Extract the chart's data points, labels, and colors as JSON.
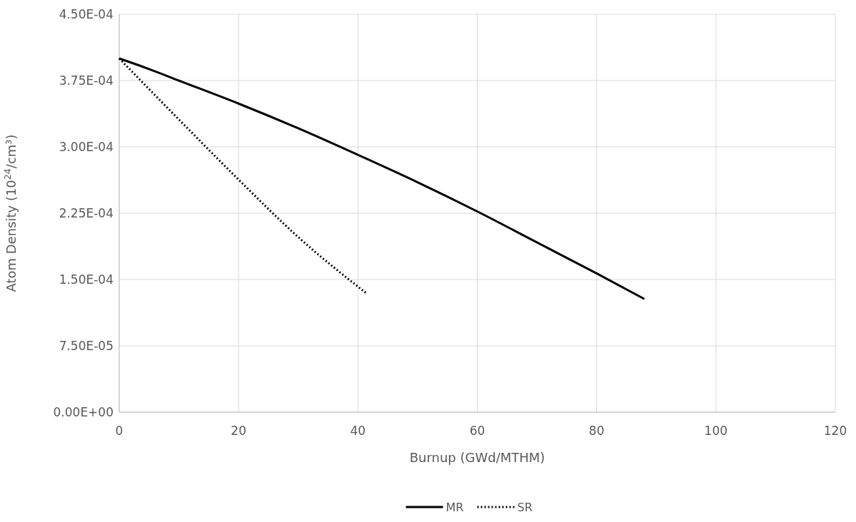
{
  "chart_data": {
    "type": "line",
    "xlabel": "Burnup (GWd/MTHM)",
    "ylabel": "Atom Density (10$^{24}$/cm³)",
    "xlim": [
      0,
      120
    ],
    "xticks": [
      0,
      20,
      40,
      60,
      80,
      100,
      120
    ],
    "ylim": [
      0,
      0.00045
    ],
    "yticks": [
      {
        "value": 0,
        "label": "0.00E+00"
      },
      {
        "value": 7.5e-05,
        "label": "7.50E-05"
      },
      {
        "value": 0.00015,
        "label": "1.50E-04"
      },
      {
        "value": 0.000225,
        "label": "2.25E-04"
      },
      {
        "value": 0.0003,
        "label": "3.00E-04"
      },
      {
        "value": 0.000375,
        "label": "3.75E-04"
      },
      {
        "value": 0.00045,
        "label": "4.50E-04"
      }
    ],
    "grid": true,
    "legend": "bottom",
    "marker": "none",
    "series": [
      {
        "name": "MR",
        "color": "#000000",
        "line_style": "solid",
        "x": [
          0,
          5,
          10,
          20,
          30,
          40,
          50,
          60,
          70,
          80,
          88
        ],
        "values": [
          0.0004,
          0.000388,
          0.000375,
          0.000349,
          0.000321,
          0.000291,
          0.00026,
          0.000227,
          0.000192,
          0.000157,
          0.000128
        ]
      },
      {
        "name": "SR",
        "color": "#000000",
        "line_style": "dotted",
        "x": [
          0,
          10,
          20,
          30,
          41.5
        ],
        "values": [
          0.0004,
          0.000331,
          0.000263,
          0.000198,
          0.000134
        ]
      }
    ]
  }
}
